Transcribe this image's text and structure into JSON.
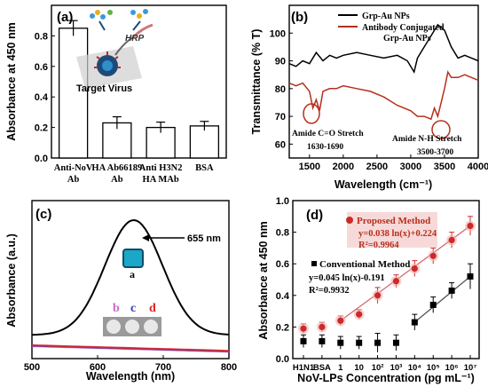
{
  "chart_data": [
    {
      "panel": "(a)",
      "type": "bar",
      "ylabel": "Absorbance at 450 nm",
      "ylim": [
        0.0,
        1.0
      ],
      "yticks": [
        "0.0",
        "0.2",
        "0.4",
        "0.6",
        "0.8"
      ],
      "categories": [
        [
          "Anti-NoV",
          "Ab"
        ],
        [
          "HA Ab66189",
          "Ab"
        ],
        [
          "Anti H3N2",
          "HA MAb"
        ],
        [
          "BSA",
          ""
        ]
      ],
      "values": [
        0.85,
        0.23,
        0.2,
        0.21
      ],
      "errors": [
        0.05,
        0.04,
        0.035,
        0.03
      ],
      "inset_text": {
        "virus": "Target Virus",
        "hrp": "HRP"
      }
    },
    {
      "panel": "(b)",
      "type": "line",
      "xlabel": "Wavelength (cm⁻¹)",
      "ylabel": "Transmittance (% T)",
      "xlim": [
        1200,
        4000
      ],
      "ylim": [
        55,
        110
      ],
      "xticks": [
        "1500",
        "2000",
        "2500",
        "3000",
        "3500",
        "4000"
      ],
      "yticks": [
        "60",
        "70",
        "80",
        "90",
        "100"
      ],
      "series": [
        {
          "name": "Grp-Au NPs",
          "color": "#000000",
          "points": [
            [
              1200,
              89
            ],
            [
              1300,
              88
            ],
            [
              1400,
              90
            ],
            [
              1500,
              89
            ],
            [
              1600,
              93
            ],
            [
              1700,
              90
            ],
            [
              1800,
              92
            ],
            [
              1900,
              91
            ],
            [
              2000,
              92
            ],
            [
              2200,
              93
            ],
            [
              2400,
              92
            ],
            [
              2600,
              91
            ],
            [
              2800,
              92
            ],
            [
              2950,
              90
            ],
            [
              3050,
              86
            ],
            [
              3100,
              91
            ],
            [
              3200,
              95
            ],
            [
              3300,
              99
            ],
            [
              3400,
              103
            ],
            [
              3500,
              101
            ],
            [
              3600,
              95
            ],
            [
              3700,
              91
            ],
            [
              3800,
              92
            ],
            [
              3900,
              91
            ],
            [
              4000,
              90
            ]
          ]
        },
        {
          "name_lines": [
            "Antibody Conjugated",
            "Grp-Au NPs"
          ],
          "color": "#b5301c",
          "points": [
            [
              1200,
              82
            ],
            [
              1300,
              81
            ],
            [
              1400,
              82
            ],
            [
              1500,
              79
            ],
            [
              1550,
              73
            ],
            [
              1600,
              76
            ],
            [
              1650,
              72
            ],
            [
              1700,
              79
            ],
            [
              1800,
              80
            ],
            [
              1900,
              80
            ],
            [
              2000,
              81
            ],
            [
              2200,
              80
            ],
            [
              2400,
              79
            ],
            [
              2600,
              77
            ],
            [
              2800,
              74
            ],
            [
              3000,
              72
            ],
            [
              3100,
              70
            ],
            [
              3200,
              70
            ],
            [
              3300,
              69
            ],
            [
              3350,
              73
            ],
            [
              3400,
              70
            ],
            [
              3500,
              80
            ],
            [
              3550,
              86
            ],
            [
              3600,
              84
            ],
            [
              3700,
              84
            ],
            [
              3800,
              85
            ],
            [
              3900,
              84
            ],
            [
              4000,
              83
            ]
          ]
        }
      ],
      "annotations": [
        {
          "lines": [
            "Amide C=O Stretch",
            "1630-1690"
          ]
        },
        {
          "lines": [
            "Amide N-H Stretch",
            "3500-3700"
          ]
        }
      ]
    },
    {
      "panel": "(c)",
      "type": "line",
      "xlabel": "Wavelength (nm)",
      "ylabel": "Absorbance (a.u.)",
      "xlim": [
        500,
        800
      ],
      "xticks": [
        "500",
        "600",
        "700",
        "800"
      ],
      "peak_label": "655 nm",
      "series": [
        {
          "label": "a",
          "color": "#000000",
          "peak": 655
        },
        {
          "label": "b",
          "color": "#cc66cc"
        },
        {
          "label": "c",
          "color": "#3344bb"
        },
        {
          "label": "d",
          "color": "#dd2222"
        }
      ]
    },
    {
      "panel": "(d)",
      "type": "scatter",
      "xlabel": "NoV-LPs Concentration (pg mL⁻¹)",
      "ylabel": "Absorbance at 450 nm",
      "ylim": [
        0.0,
        1.0
      ],
      "yticks": [
        "0.0",
        "0.2",
        "0.4",
        "0.6",
        "0.8",
        "1.0"
      ],
      "x_categories": [
        "H1N1",
        "BSA",
        "1",
        "10",
        "10²",
        "10³",
        "10⁴",
        "10⁵",
        "10⁶",
        "10⁷"
      ],
      "series": [
        {
          "name": "Proposed Method",
          "color": "#cc2a2a",
          "marker": "circle",
          "equation": "y=0.038 ln(x)+0.224",
          "r2": "R²=0.9964",
          "values": [
            0.19,
            0.2,
            0.24,
            0.28,
            0.4,
            0.49,
            0.57,
            0.65,
            0.75,
            0.84
          ],
          "errors": [
            0.03,
            0.03,
            0.03,
            0.03,
            0.05,
            0.04,
            0.05,
            0.05,
            0.05,
            0.06
          ]
        },
        {
          "name": "Conventional Method",
          "color": "#000000",
          "marker": "square",
          "equation": "y=0.045 ln(x)-0.191",
          "r2": "R²=0.9932",
          "values": [
            0.11,
            0.11,
            0.1,
            0.1,
            0.1,
            0.1,
            0.23,
            0.34,
            0.43,
            0.52
          ],
          "errors": [
            0.04,
            0.04,
            0.04,
            0.04,
            0.06,
            0.05,
            0.05,
            0.05,
            0.05,
            0.08
          ]
        }
      ]
    }
  ],
  "colors": {
    "red_series": "#b5301c",
    "well_blue": "#1ba7c8",
    "trend_red": "#d66a6a"
  }
}
